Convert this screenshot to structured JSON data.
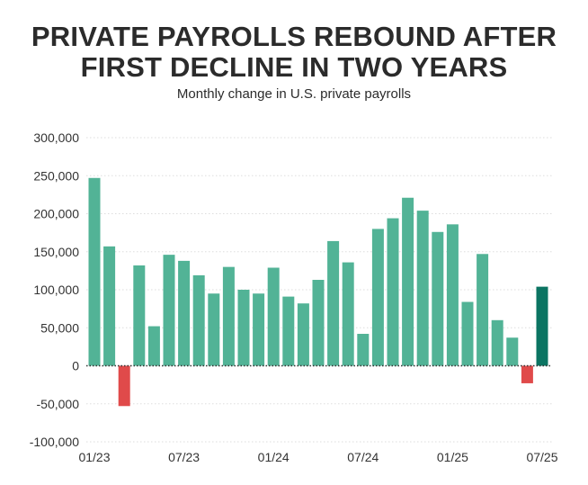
{
  "chart_data": {
    "type": "bar",
    "title": "PRIVATE PAYROLLS REBOUND AFTER FIRST DECLINE IN TWO YEARS",
    "title_lines": [
      "PRIVATE PAYROLLS REBOUND AFTER",
      "FIRST DECLINE IN TWO YEARS"
    ],
    "subtitle": "Monthly change in U.S. private payrolls",
    "xlabel": "",
    "ylabel": "",
    "ylim": [
      -100000,
      300000
    ],
    "yticks": [
      300000,
      250000,
      200000,
      150000,
      100000,
      50000,
      0,
      -50000,
      -100000
    ],
    "ytick_labels": [
      "300,000",
      "250,000",
      "200,000",
      "150,000",
      "100,000",
      "50,000",
      "0",
      "-50,000",
      "-100,000"
    ],
    "xtick_labels": [
      {
        "label": "01/23",
        "index": 0
      },
      {
        "label": "07/23",
        "index": 6
      },
      {
        "label": "01/24",
        "index": 12
      },
      {
        "label": "07/24",
        "index": 18
      },
      {
        "label": "01/25",
        "index": 24
      },
      {
        "label": "07/25",
        "index": 30
      }
    ],
    "categories": [
      "01/23",
      "02/23",
      "03/23",
      "04/23",
      "05/23",
      "06/23",
      "07/23",
      "08/23",
      "09/23",
      "10/23",
      "11/23",
      "12/23",
      "01/24",
      "02/24",
      "03/24",
      "04/24",
      "05/24",
      "06/24",
      "07/24",
      "08/24",
      "09/24",
      "10/24",
      "11/24",
      "12/24",
      "01/25",
      "02/25",
      "03/25",
      "04/25",
      "05/25",
      "06/25",
      "07/25"
    ],
    "values": [
      247000,
      157000,
      -53000,
      132000,
      52000,
      146000,
      138000,
      119000,
      95000,
      130000,
      100000,
      95000,
      129000,
      91000,
      82000,
      113000,
      164000,
      136000,
      42000,
      180000,
      194000,
      221000,
      204000,
      176000,
      186000,
      84000,
      147000,
      60000,
      37000,
      -23000,
      104000
    ],
    "grid": true,
    "legend": "none",
    "colors": {
      "positive": "#52b396",
      "negative": "#e04a4a",
      "latest": "#0b7462",
      "grid": "#dddddd",
      "zero_line": "#333333",
      "text": "#2b2b2b"
    }
  }
}
